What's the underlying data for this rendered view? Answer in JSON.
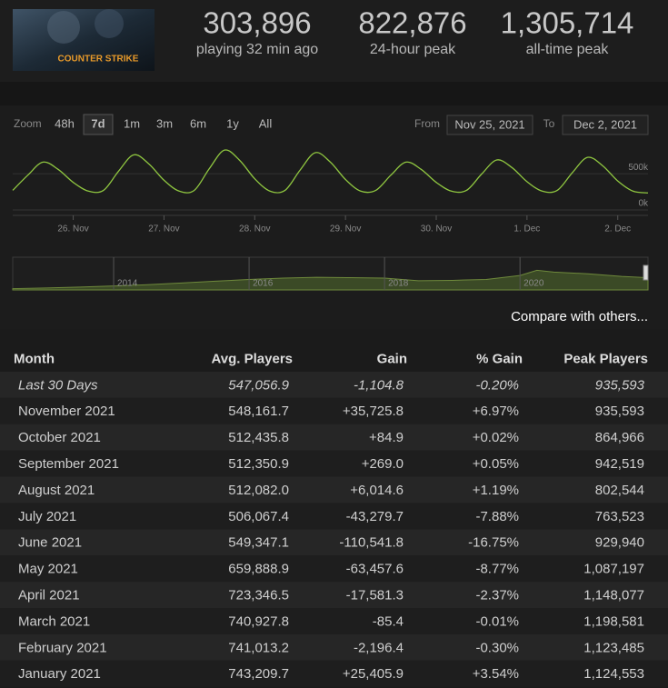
{
  "header": {
    "logo": "COUNTER STRIKE",
    "stats": [
      {
        "value": "303,896",
        "label": "playing 32 min ago"
      },
      {
        "value": "822,876",
        "label": "24-hour peak"
      },
      {
        "value": "1,305,714",
        "label": "all-time peak"
      }
    ]
  },
  "controls": {
    "zoom_label": "Zoom",
    "zoom_options": [
      "48h",
      "7d",
      "1m",
      "3m",
      "6m",
      "1y",
      "All"
    ],
    "active_zoom": 1,
    "from_label": "From",
    "from": "Nov 25, 2021",
    "to_label": "To",
    "to": "Dec 2, 2021"
  },
  "main_chart": {
    "type": "line",
    "color": "#8fc640",
    "x": [
      8,
      12,
      16,
      20,
      24,
      28,
      32,
      36,
      40,
      44,
      48,
      52,
      56,
      60,
      64,
      68,
      72,
      76,
      80,
      84,
      88,
      92,
      96,
      100,
      104,
      108,
      112,
      116,
      120,
      124,
      128,
      132,
      136,
      140,
      144,
      148,
      152,
      156,
      160,
      164,
      168,
      172,
      176
    ],
    "values": [
      270000,
      480000,
      660000,
      560000,
      380000,
      260000,
      270000,
      535000,
      760000,
      635000,
      410000,
      260000,
      270000,
      570000,
      825000,
      685000,
      430000,
      260000,
      270000,
      550000,
      790000,
      660000,
      420000,
      260000,
      270000,
      480000,
      660000,
      560000,
      380000,
      260000,
      270000,
      495000,
      690000,
      585000,
      390000,
      260000,
      270000,
      515000,
      725000,
      610000,
      400000,
      260000,
      235000
    ],
    "xlim": [
      8,
      176
    ],
    "xticks": [
      {
        "value": 24,
        "label": "26. Nov"
      },
      {
        "value": 48,
        "label": "27. Nov"
      },
      {
        "value": 72,
        "label": "28. Nov"
      },
      {
        "value": 96,
        "label": "29. Nov"
      },
      {
        "value": 120,
        "label": "30. Nov"
      },
      {
        "value": 144,
        "label": "1. Dec"
      },
      {
        "value": 168,
        "label": "2. Dec"
      }
    ],
    "ylim": [
      0,
      890000
    ],
    "yticks": [
      {
        "value": 0,
        "label": "0k"
      },
      {
        "value": 500000,
        "label": "500k"
      }
    ],
    "grid": true
  },
  "navigator": {
    "type": "area",
    "color": "#6f8a3c",
    "x": [
      2012.51,
      2013,
      2013.5,
      2014,
      2014.5,
      2015,
      2015.5,
      2016,
      2016.5,
      2017,
      2017.5,
      2018,
      2018.5,
      2019,
      2019.5,
      2020,
      2020.25,
      2020.5,
      2021,
      2021.5,
      2021.89
    ],
    "values": [
      60000,
      90000,
      130000,
      180000,
      240000,
      320000,
      400000,
      480000,
      540000,
      580000,
      560000,
      540000,
      420000,
      440000,
      480000,
      660000,
      900000,
      820000,
      740000,
      620000,
      560000
    ],
    "xlim": [
      2012.51,
      2021.89
    ],
    "xticks": [
      2014,
      2016,
      2018,
      2020
    ],
    "ylim": [
      0,
      1500000
    ]
  },
  "compare_link": "Compare with others...",
  "table": {
    "headers": [
      "Month",
      "Avg. Players",
      "Gain",
      "% Gain",
      "Peak Players"
    ],
    "rows": [
      [
        "Last 30 Days",
        "547,056.9",
        "-1,104.8",
        "-0.20%",
        "935,593"
      ],
      [
        "November 2021",
        "548,161.7",
        "+35,725.8",
        "+6.97%",
        "935,593"
      ],
      [
        "October 2021",
        "512,435.8",
        "+84.9",
        "+0.02%",
        "864,966"
      ],
      [
        "September 2021",
        "512,350.9",
        "+269.0",
        "+0.05%",
        "942,519"
      ],
      [
        "August 2021",
        "512,082.0",
        "+6,014.6",
        "+1.19%",
        "802,544"
      ],
      [
        "July 2021",
        "506,067.4",
        "-43,279.7",
        "-7.88%",
        "763,523"
      ],
      [
        "June 2021",
        "549,347.1",
        "-110,541.8",
        "-16.75%",
        "929,940"
      ],
      [
        "May 2021",
        "659,888.9",
        "-63,457.6",
        "-8.77%",
        "1,087,197"
      ],
      [
        "April 2021",
        "723,346.5",
        "-17,581.3",
        "-2.37%",
        "1,148,077"
      ],
      [
        "March 2021",
        "740,927.8",
        "-85.4",
        "-0.01%",
        "1,198,581"
      ],
      [
        "February 2021",
        "741,013.2",
        "-2,196.4",
        "-0.30%",
        "1,123,485"
      ],
      [
        "January 2021",
        "743,209.7",
        "+25,405.9",
        "+3.54%",
        "1,124,553"
      ]
    ]
  }
}
